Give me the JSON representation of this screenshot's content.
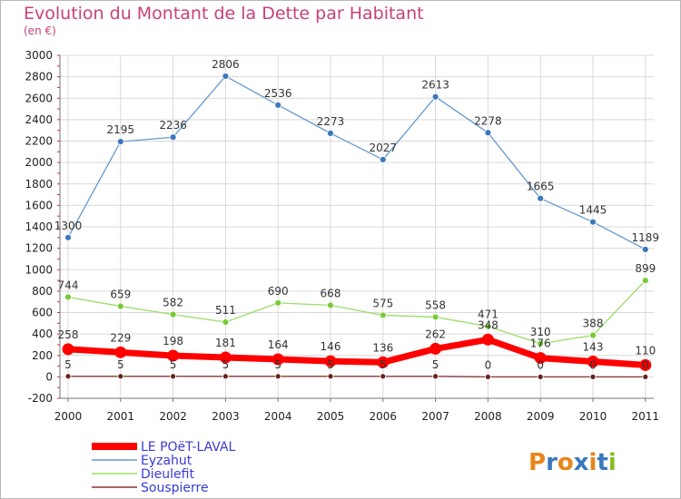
{
  "chart_data": {
    "type": "line",
    "title": "Evolution du Montant de la Dette par Habitant",
    "subtitle": "(en €)",
    "x": [
      "2000",
      "2001",
      "2002",
      "2003",
      "2004",
      "2005",
      "2006",
      "2007",
      "2008",
      "2009",
      "2010",
      "2011"
    ],
    "ylim": [
      -200,
      3000
    ],
    "yticks": [
      -200,
      0,
      200,
      400,
      600,
      800,
      1000,
      1200,
      1400,
      1600,
      1800,
      2000,
      2200,
      2400,
      2600,
      2800,
      3000
    ],
    "grid": true,
    "legend_position": "bottom-left",
    "series": [
      {
        "name": "LE POëT-LAVAL",
        "color": "#ff0000",
        "values": [
          258,
          229,
          198,
          181,
          164,
          146,
          136,
          262,
          348,
          176,
          143,
          110
        ],
        "labels": [
          "258",
          "229",
          "198",
          "181",
          "164",
          "146",
          "136",
          "262",
          "348",
          "176",
          "143",
          "110"
        ]
      },
      {
        "name": "Eyzahut",
        "color": "#6699cc",
        "values": [
          1300,
          2195,
          2236,
          2806,
          2536,
          2273,
          2027,
          2613,
          2278,
          1665,
          1445,
          1189
        ],
        "labels": [
          "1300",
          "2195",
          "2236",
          "2806",
          "2536",
          "2273",
          "2027",
          "2613",
          "2278",
          "1665",
          "1445",
          "1189"
        ]
      },
      {
        "name": "Dieulefit",
        "color": "#99dd66",
        "values": [
          744,
          659,
          582,
          511,
          690,
          668,
          575,
          558,
          471,
          310,
          388,
          899
        ],
        "labels": [
          "744",
          "659",
          "582",
          "511",
          "690",
          "668",
          "575",
          "558",
          "471",
          "310",
          "388",
          "899"
        ]
      },
      {
        "name": "Souspierre",
        "color": "#883333",
        "values": [
          5,
          5,
          5,
          5,
          5,
          5,
          5,
          5,
          0,
          0,
          0,
          0
        ],
        "labels": [
          "5",
          "5",
          "5",
          "5",
          "5",
          "5",
          "5",
          "5",
          "0",
          "0",
          "0",
          "0"
        ]
      }
    ]
  },
  "watermark": "Proxiti"
}
